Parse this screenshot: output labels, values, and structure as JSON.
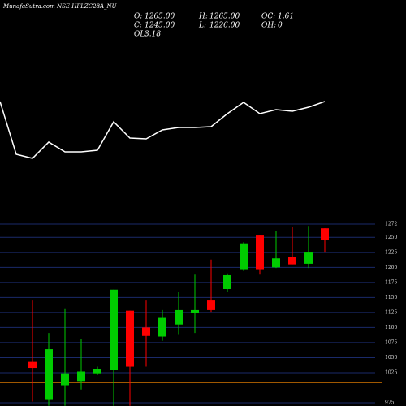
{
  "header": {
    "title": "MunafaSutra.com NSE HFLZC28A_NU",
    "stats": [
      {
        "label": "O:",
        "text": "1265.00"
      },
      {
        "label": "H:",
        "text": "1265.00"
      },
      {
        "label": "OC:",
        "text": "1.61"
      },
      {
        "label": "C:",
        "text": "1245.00"
      },
      {
        "label": "L:",
        "text": "1226.00"
      },
      {
        "label": "OH:",
        "text": "0"
      },
      {
        "label": "OL:",
        "text": "3.18"
      }
    ]
  },
  "chart_data": [
    {
      "type": "line",
      "color": "#ffffff",
      "ylim": [
        0,
        100
      ],
      "values": [
        75,
        10,
        5,
        25,
        13,
        13,
        15,
        50,
        30,
        29,
        40,
        43,
        43,
        44,
        60,
        74,
        60,
        65,
        63,
        68,
        75
      ]
    },
    {
      "type": "candlestick",
      "up_color": "#00cc00",
      "down_color": "#ff0000",
      "grid": true,
      "grid_color": "#1a2a6a",
      "ylim": [
        975,
        1272
      ],
      "yticks": [
        1272,
        1250,
        1225,
        1200,
        1175,
        1150,
        1125,
        1100,
        1075,
        1050,
        1025,
        975
      ],
      "ref_line": {
        "value": 1009,
        "color": "#ff8c00"
      },
      "open": [
        1043,
        981,
        1004,
        1011,
        1024,
        1029,
        1128,
        1100,
        1085,
        1105,
        1124,
        1145,
        1164,
        1197,
        1253,
        1200,
        1218,
        1206,
        1265
      ],
      "high": [
        1145,
        1091,
        1132,
        1081,
        1035,
        1163,
        1128,
        1145,
        1129,
        1159,
        1188,
        1213,
        1190,
        1242,
        1253,
        1260,
        1267,
        1269,
        1265
      ],
      "low": [
        977,
        970,
        970,
        997,
        1021,
        970,
        970,
        1035,
        1078,
        1089,
        1091,
        1126,
        1159,
        1194,
        1188,
        1199,
        1205,
        1199,
        1226
      ],
      "close": [
        1033,
        1064,
        1024,
        1027,
        1031,
        1163,
        1035,
        1086,
        1116,
        1129,
        1129,
        1129,
        1187,
        1240,
        1197,
        1215,
        1205,
        1226,
        1245
      ]
    }
  ]
}
